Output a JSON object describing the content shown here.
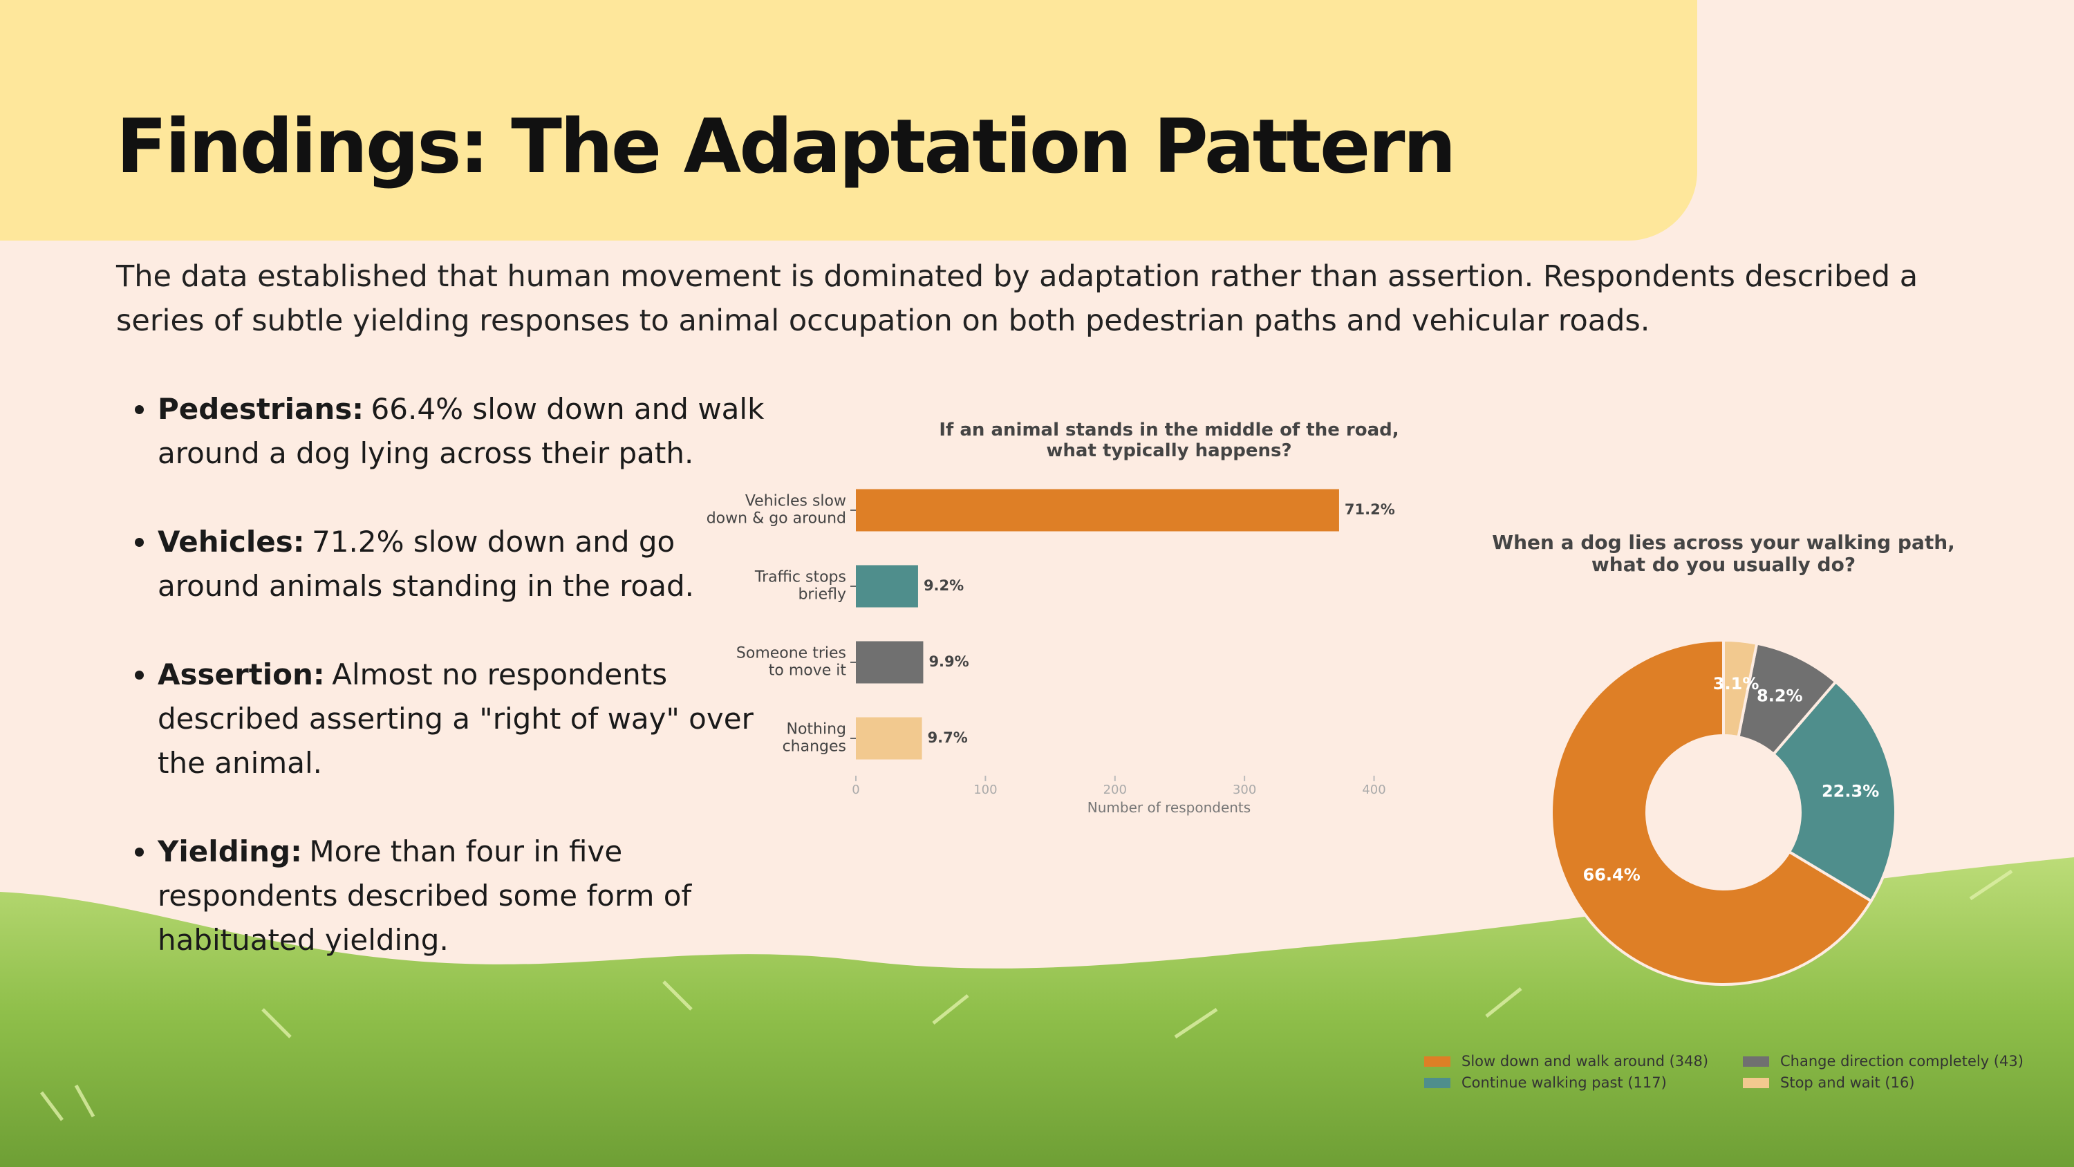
{
  "title": "Findings: The Adaptation Pattern",
  "intro": "The data established that human movement is dominated by adaptation rather than assertion. Respondents described a series of subtle yielding responses to animal occupation on both pedestrian paths and vehicular roads.",
  "bullets": [
    {
      "label": "Pedestrians:",
      "text": "66.4% slow down and walk around a dog lying across their path."
    },
    {
      "label": "Vehicles:",
      "text": "71.2% slow down and go around animals standing in the road."
    },
    {
      "label": "Assertion:",
      "text": "Almost no respondents described asserting a \"right of way\" over the animal."
    },
    {
      "label": "Yielding:",
      "text": "More than four in five respondents described some form of habituated yielding."
    }
  ],
  "chart_data": [
    {
      "type": "barh",
      "title": "If an animal stands in the middle of the road,\nwhat typically happens?",
      "categories": [
        "Vehicles slow\ndown & go around",
        "Traffic stops\nbriefly",
        "Someone tries\nto move it",
        "Nothing\nchanges"
      ],
      "values": [
        373,
        48,
        52,
        51
      ],
      "value_labels": [
        "71.2%",
        "9.2%",
        "9.9%",
        "9.7%"
      ],
      "colors": [
        "#de7f26",
        "#4f8e8c",
        "#707070",
        "#f2c98f"
      ],
      "xlabel": "Number of respondents",
      "xlim": [
        0,
        420
      ],
      "xticks": [
        0,
        100,
        200,
        300,
        400
      ]
    },
    {
      "type": "donut",
      "title": "When a dog lies across your walking path,\nwhat do you usually do?",
      "categories": [
        "Slow down and walk around (348)",
        "Continue walking past (117)",
        "Change direction completely (43)",
        "Stop and wait (16)"
      ],
      "values": [
        66.4,
        22.3,
        8.2,
        3.1
      ],
      "value_labels": [
        "66.4%",
        "22.3%",
        "8.2%",
        "3.1%"
      ],
      "colors": [
        "#de7f26",
        "#4f8e8c",
        "#707070",
        "#f2c98f"
      ]
    }
  ]
}
